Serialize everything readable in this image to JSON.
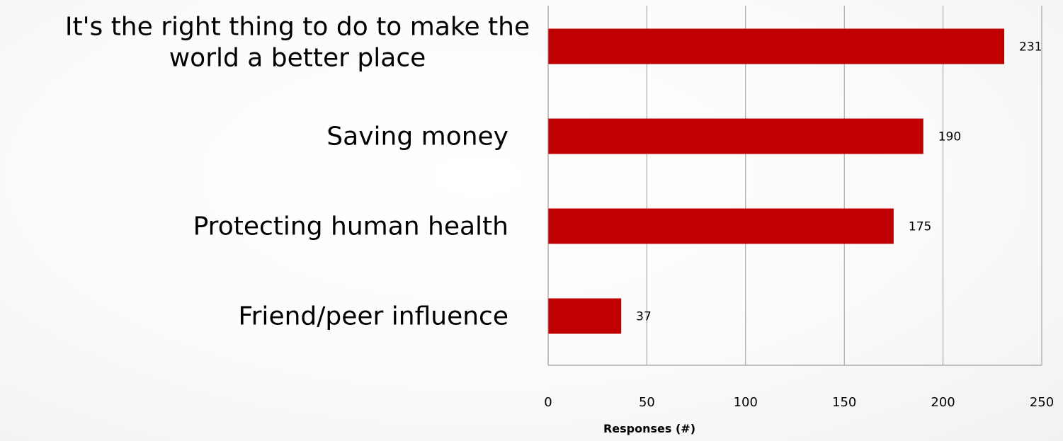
{
  "chart_data": {
    "type": "bar",
    "orientation": "horizontal",
    "categories": [
      "It's the right thing to do to make the world a better place",
      "Saving money",
      "Protecting human health",
      "Friend/peer influence"
    ],
    "category_lines": [
      [
        "It's the right thing to do to make the",
        "world a better place"
      ],
      [
        "Saving money"
      ],
      [
        "Protecting human health"
      ],
      [
        "Friend/peer influence"
      ]
    ],
    "values": [
      231,
      190,
      175,
      37
    ],
    "data_labels": [
      "231",
      "190",
      "175",
      "37"
    ],
    "xlabel": "Responses (#)",
    "xlim": [
      0,
      250
    ],
    "x_ticks": [
      0,
      50,
      100,
      150,
      200,
      250
    ],
    "x_tick_labels": [
      "0",
      "50",
      "100",
      "150",
      "200",
      "250"
    ],
    "grid": "vertical",
    "legend": "none",
    "bar_color": "#c00000"
  }
}
